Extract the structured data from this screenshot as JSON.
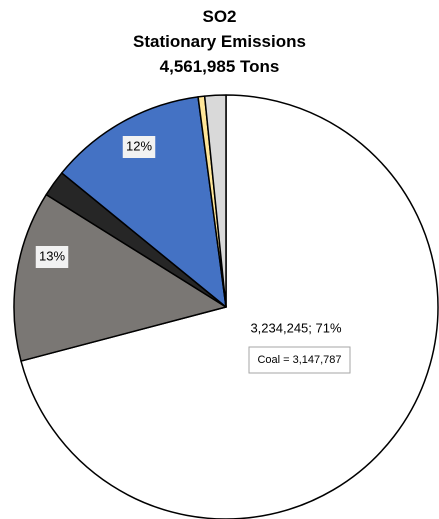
{
  "chart_data": {
    "type": "pie",
    "title_lines": [
      "SO2",
      "Stationary Emissions",
      "4,561,985 Tons"
    ],
    "series": [
      {
        "values": [
          3234245,
          593058,
          91240,
          547438,
          22810,
          73194
        ],
        "colors": [
          "#ffffff",
          "#7a7774",
          "#262626",
          "#4472c4",
          "#ffe699",
          "#d9d9d9"
        ]
      }
    ],
    "data_labels": [
      {
        "slice": 0,
        "text": "3,234,245;  71%"
      },
      {
        "slice": 1,
        "text": "13%"
      },
      {
        "slice": 3,
        "text": "12%"
      }
    ],
    "annotations": [
      {
        "slice": 0,
        "text": "Coal = 3,147,787",
        "boxed": true
      }
    ],
    "start_angle_deg": 0,
    "direction": "clockwise",
    "outline_color": "#000000"
  }
}
